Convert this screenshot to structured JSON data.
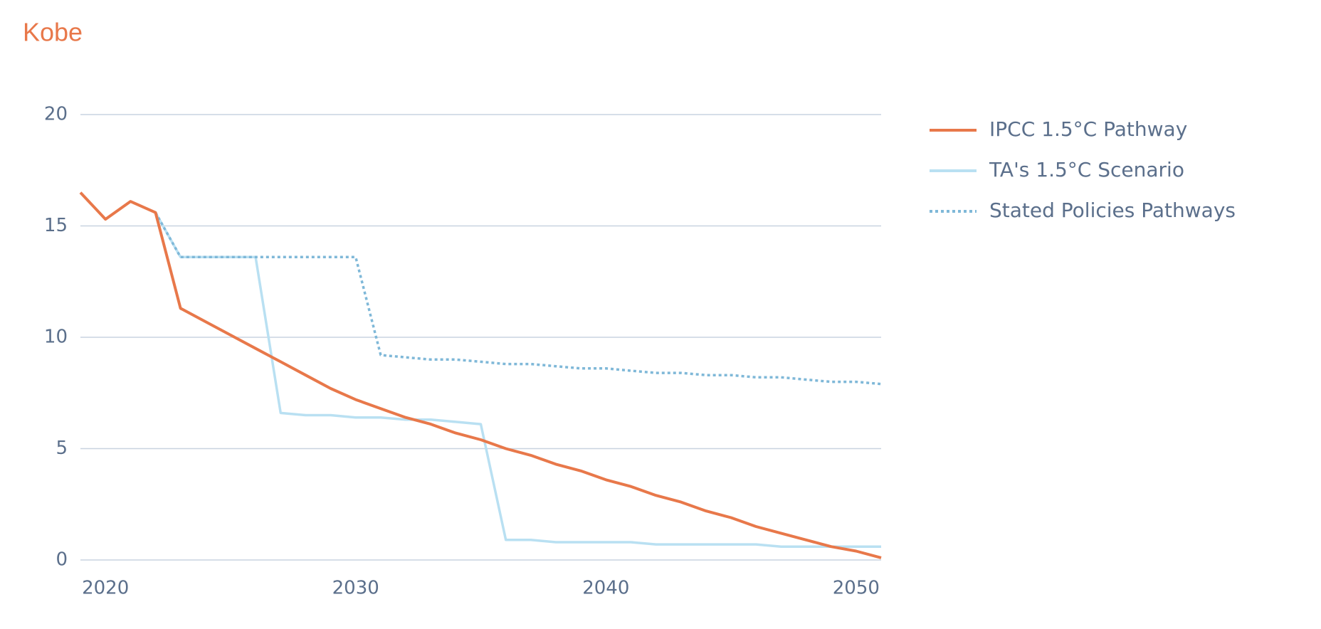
{
  "chart_data": {
    "type": "line",
    "title": "Kobe",
    "x": [
      2019,
      2020,
      2021,
      2022,
      2023,
      2024,
      2025,
      2026,
      2027,
      2028,
      2029,
      2030,
      2031,
      2032,
      2033,
      2034,
      2035,
      2036,
      2037,
      2038,
      2039,
      2040,
      2041,
      2042,
      2043,
      2044,
      2045,
      2046,
      2047,
      2048,
      2049,
      2050,
      2051
    ],
    "series": [
      {
        "name": "IPCC 1.5°C Pathway",
        "color": "#e8784a",
        "style": "solid",
        "values": [
          16.5,
          15.3,
          16.1,
          15.6,
          11.3,
          10.7,
          10.1,
          9.5,
          8.9,
          8.3,
          7.7,
          7.2,
          6.8,
          6.4,
          6.1,
          5.7,
          5.4,
          5.0,
          4.7,
          4.3,
          4.0,
          3.6,
          3.3,
          2.9,
          2.6,
          2.2,
          1.9,
          1.5,
          1.2,
          0.9,
          0.6,
          0.4,
          0.1
        ]
      },
      {
        "name": "TA's 1.5°C Scenario",
        "color": "#b9e0f2",
        "style": "solid",
        "values": [
          null,
          null,
          null,
          15.6,
          13.6,
          13.6,
          13.6,
          13.6,
          6.6,
          6.5,
          6.5,
          6.4,
          6.4,
          6.3,
          6.3,
          6.2,
          6.1,
          0.9,
          0.9,
          0.8,
          0.8,
          0.8,
          0.8,
          0.7,
          0.7,
          0.7,
          0.7,
          0.7,
          0.6,
          0.6,
          0.6,
          0.6,
          0.6
        ]
      },
      {
        "name": "Stated Policies Pathways",
        "color": "#7fb8d8",
        "style": "dotted",
        "values": [
          null,
          null,
          null,
          15.6,
          13.6,
          13.6,
          13.6,
          13.6,
          13.6,
          13.6,
          13.6,
          13.6,
          9.2,
          9.1,
          9.0,
          9.0,
          8.9,
          8.8,
          8.8,
          8.7,
          8.6,
          8.6,
          8.5,
          8.4,
          8.4,
          8.3,
          8.3,
          8.2,
          8.2,
          8.1,
          8.0,
          8.0,
          7.9
        ]
      }
    ],
    "xlim": [
      2019,
      2051
    ],
    "xticks": [
      2020,
      2030,
      2040,
      2050
    ],
    "ylim": [
      0,
      20
    ],
    "yticks": [
      0,
      5,
      10,
      15,
      20
    ],
    "grid": true,
    "legend": "right"
  }
}
